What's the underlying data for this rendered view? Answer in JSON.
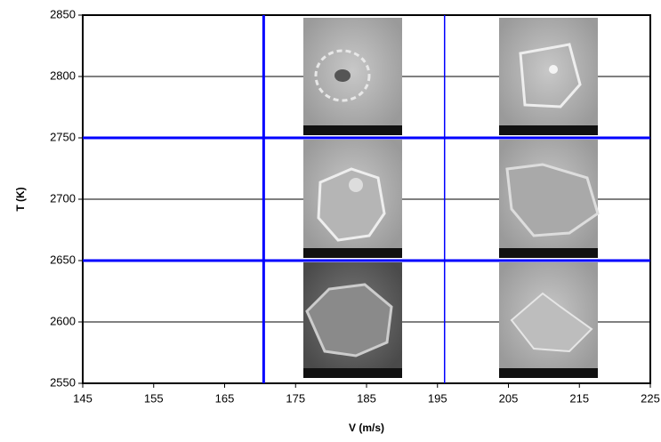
{
  "chart_data": {
    "type": "region-map",
    "x_label": "V (m/s)",
    "y_label": "T (K)",
    "xlim": [
      145,
      225
    ],
    "xticks": [
      145,
      155,
      165,
      175,
      185,
      195,
      205,
      215,
      225
    ],
    "ylim": [
      2550,
      2850
    ],
    "yticks": [
      2550,
      2600,
      2650,
      2700,
      2750,
      2800,
      2850
    ],
    "grid": true,
    "grid_color": "#000000",
    "boundaries": {
      "color": "#0000ff",
      "x": [
        170.5,
        196
      ],
      "y": [
        2750,
        2650
      ]
    }
  }
}
